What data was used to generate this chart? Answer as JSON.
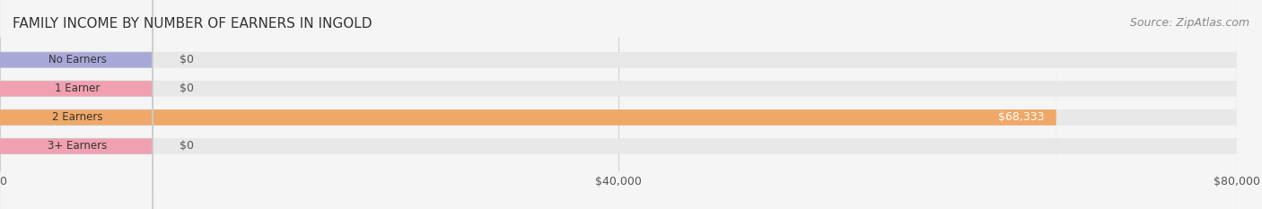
{
  "title": "FAMILY INCOME BY NUMBER OF EARNERS IN INGOLD",
  "source": "Source: ZipAtlas.com",
  "categories": [
    "No Earners",
    "1 Earner",
    "2 Earners",
    "3+ Earners"
  ],
  "values": [
    0,
    0,
    68333,
    0
  ],
  "bar_colors": [
    "#a8a8d8",
    "#f0a0b0",
    "#f0a868",
    "#f0a0b0"
  ],
  "label_colors": [
    "#555555",
    "#555555",
    "#ffffff",
    "#555555"
  ],
  "label_texts": [
    "$0",
    "$0",
    "$68,333",
    "$0"
  ],
  "bar_bg_color": "#eeeeee",
  "bar_label_colors": [
    "#555555",
    "#555555",
    "#ffffff",
    "#555555"
  ],
  "xlim": [
    0,
    80000
  ],
  "xticks": [
    0,
    40000,
    80000
  ],
  "xtick_labels": [
    "$0",
    "$40,000",
    "$80,000"
  ],
  "fig_bg_color": "#f5f5f5",
  "title_fontsize": 11,
  "source_fontsize": 9,
  "bar_height": 0.55,
  "bar_gap": 0.15
}
